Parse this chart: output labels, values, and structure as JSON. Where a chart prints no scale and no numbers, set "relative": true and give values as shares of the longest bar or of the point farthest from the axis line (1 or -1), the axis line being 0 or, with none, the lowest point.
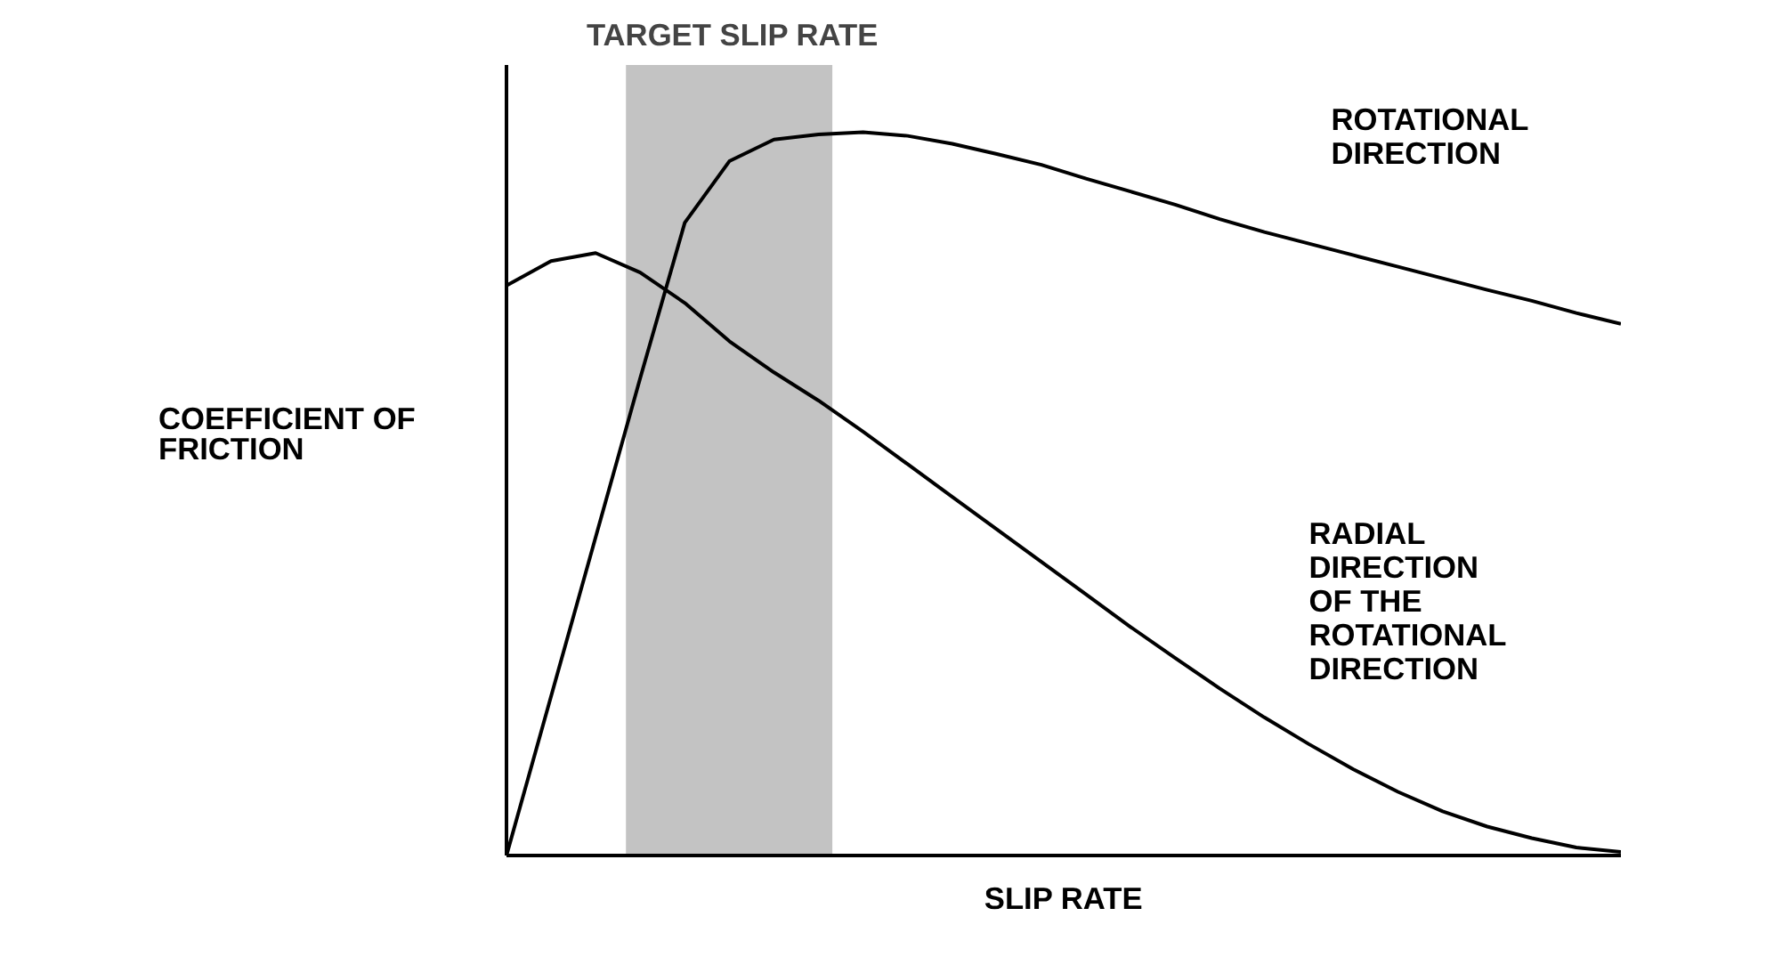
{
  "chart_data": {
    "type": "line",
    "relative": true,
    "xlabel": "SLIP RATE",
    "ylabel": "COEFFICIENT OF\nFRICTION",
    "categories": [
      null,
      null,
      null,
      null,
      null,
      null,
      null,
      null,
      null,
      null,
      null,
      null,
      null,
      null,
      null,
      null,
      null,
      null,
      null,
      null,
      null,
      null,
      null,
      null,
      null,
      null
    ],
    "series": [
      {
        "name": "ROTATIONAL\nDIRECTION",
        "color": "#000000",
        "values": [
          0,
          0.22,
          0.44,
          0.66,
          0.875,
          0.96,
          0.99,
          0.997,
          1.0,
          0.995,
          0.984,
          0.97,
          0.955,
          0.936,
          0.918,
          0.9,
          0.88,
          0.862,
          0.846,
          0.83,
          0.814,
          0.798,
          0.782,
          0.767,
          0.75,
          0.735
        ]
      },
      {
        "name": "RADIAL\nDIRECTION\nOF THE\nROTATIONAL\nDIRECTION",
        "color": "#000000",
        "values": [
          0.788,
          0.822,
          0.833,
          0.806,
          0.764,
          0.711,
          0.668,
          0.629,
          0.586,
          0.541,
          0.496,
          0.451,
          0.406,
          0.361,
          0.316,
          0.273,
          0.231,
          0.191,
          0.154,
          0.119,
          0.088,
          0.061,
          0.04,
          0.024,
          0.011,
          0.005
        ]
      }
    ],
    "annotations": [
      "TARGET SLIP RATE"
    ],
    "grid": false,
    "legend": false,
    "marker": "none",
    "line_style": "solid"
  }
}
